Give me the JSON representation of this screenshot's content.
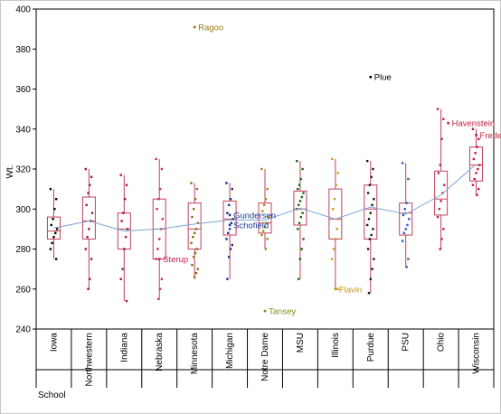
{
  "chart_data": {
    "type": "box-plot-with-points",
    "ylabel": "Wt.",
    "xlabel": "School",
    "ylim": [
      240,
      400
    ],
    "yticks": [
      240,
      260,
      280,
      300,
      320,
      340,
      360,
      380,
      400
    ],
    "grid": false,
    "colors": {
      "box": "#c0405a",
      "mean_line": "#7ea4d4",
      "axis": "#000000"
    },
    "categories": [
      "Iowa",
      "Northwestern",
      "Indiana",
      "Nebraska",
      "Minnesota",
      "Michigan",
      "Notre Dame",
      "MSU",
      "Illinois",
      "Purdue",
      "PSU",
      "Ohio",
      "Wisconsin"
    ],
    "boxes": [
      {
        "school": "Iowa",
        "min": 275,
        "q1": 285,
        "median": 289,
        "q3": 296,
        "max": 310
      },
      {
        "school": "Northwestern",
        "min": 260,
        "q1": 285,
        "median": 294,
        "q3": 306,
        "max": 320
      },
      {
        "school": "Indiana",
        "min": 254,
        "q1": 280,
        "median": 290,
        "q3": 298,
        "max": 317
      },
      {
        "school": "Nebraska",
        "min": 255,
        "q1": 275,
        "median": 290,
        "q3": 305,
        "max": 325
      },
      {
        "school": "Minnesota",
        "min": 265,
        "q1": 280,
        "median": 290,
        "q3": 303,
        "max": 313
      },
      {
        "school": "Michigan",
        "min": 265,
        "q1": 287,
        "median": 295,
        "q3": 304,
        "max": 313
      },
      {
        "school": "Notre Dame",
        "min": 280,
        "q1": 288,
        "median": 293,
        "q3": 303,
        "max": 320
      },
      {
        "school": "MSU",
        "min": 265,
        "q1": 292,
        "median": 300,
        "q3": 309,
        "max": 324
      },
      {
        "school": "Illinois",
        "min": 260,
        "q1": 285,
        "median": 295,
        "q3": 310,
        "max": 325
      },
      {
        "school": "Purdue",
        "min": 258,
        "q1": 285,
        "median": 300,
        "q3": 312,
        "max": 324
      },
      {
        "school": "PSU",
        "min": 271,
        "q1": 287,
        "median": 298,
        "q3": 303,
        "max": 323
      },
      {
        "school": "Ohio",
        "min": 280,
        "q1": 297,
        "median": 305,
        "q3": 319,
        "max": 350
      },
      {
        "school": "Wisconsin",
        "min": 307,
        "q1": 314,
        "median": 322,
        "q3": 331,
        "max": 340
      }
    ],
    "means": [
      290.5,
      294,
      289,
      290,
      292.5,
      294.5,
      294.5,
      300.5,
      295,
      301,
      297.5,
      307,
      322.5
    ],
    "points": [
      {
        "school": "Iowa",
        "color": "#000000",
        "values": [
          310,
          305,
          300,
          295,
          292,
          290,
          288,
          286,
          283,
          280,
          275
        ]
      },
      {
        "school": "Northwestern",
        "color": "#8b1a5a",
        "values": [
          320,
          316,
          312,
          308,
          302,
          298,
          294,
          290,
          286,
          280,
          275,
          265,
          260
        ]
      },
      {
        "school": "Indiana",
        "color": "#a01840",
        "values": [
          317,
          312,
          305,
          298,
          294,
          290,
          286,
          280,
          270,
          265,
          254
        ]
      },
      {
        "school": "Nebraska",
        "color": "#c03060",
        "values": [
          325,
          320,
          310,
          305,
          300,
          295,
          290,
          285,
          280,
          275,
          265,
          260,
          255
        ]
      },
      {
        "school": "Minnesota",
        "color": "#8b6a14",
        "values": [
          313,
          310,
          305,
          300,
          296,
          293,
          290,
          288,
          286,
          283,
          280,
          278,
          276,
          272,
          270,
          268,
          266
        ]
      },
      {
        "school": "Michigan",
        "color": "#1a2c8b",
        "values": [
          313,
          310,
          305,
          302,
          298,
          295,
          293,
          290,
          288,
          285,
          282,
          280,
          276,
          265
        ]
      },
      {
        "school": "Notre Dame",
        "color": "#9a8a14",
        "values": [
          320,
          310,
          305,
          302,
          299,
          296,
          293,
          291,
          289,
          287,
          285,
          280
        ]
      },
      {
        "school": "MSU",
        "color": "#1a6a14",
        "values": [
          324,
          320,
          315,
          312,
          310,
          308,
          306,
          304,
          302,
          300,
          298,
          296,
          293,
          290,
          285,
          280,
          275,
          265
        ]
      },
      {
        "school": "Illinois",
        "color": "#c89a14",
        "values": [
          325,
          318,
          312,
          305,
          300,
          295,
          290,
          285,
          280,
          275,
          260
        ]
      },
      {
        "school": "Purdue",
        "color": "#1a1a1a",
        "values": [
          324,
          320,
          316,
          312,
          308,
          305,
          302,
          298,
          295,
          292,
          290,
          287,
          285,
          280,
          275,
          270,
          265,
          258
        ]
      },
      {
        "school": "PSU",
        "color": "#2a5ac8",
        "values": [
          323,
          315,
          303,
          300,
          297,
          295,
          292,
          290,
          288,
          284,
          275,
          271
        ]
      },
      {
        "school": "Ohio",
        "color": "#c02050",
        "values": [
          350,
          345,
          335,
          322,
          318,
          312,
          308,
          304,
          300,
          296,
          290,
          285,
          280
        ]
      },
      {
        "school": "Wisconsin",
        "color": "#c8143c",
        "values": [
          340,
          335,
          331,
          328,
          325,
          322,
          320,
          318,
          315,
          312,
          310,
          307
        ]
      }
    ],
    "annotations": [
      {
        "text": "Ragoo",
        "school": "Minnesota",
        "value": 391,
        "color": "#9a7a10"
      },
      {
        "text": "Plue",
        "school": "Purdue",
        "value": 366,
        "color": "#000000"
      },
      {
        "text": "Havenstein",
        "school": "Ohio",
        "value": 343,
        "color": "#c02040",
        "offset": "right"
      },
      {
        "text": "Frederick",
        "school": "Wisconsin",
        "value": 337,
        "color": "#c02040"
      },
      {
        "text": "Gundersen",
        "school": "Michigan",
        "value": 297,
        "color": "#1a3c9b"
      },
      {
        "text": "Schofield",
        "school": "Michigan",
        "value": 292,
        "color": "#1a3c9b"
      },
      {
        "text": "Sterup",
        "school": "Nebraska",
        "value": 275,
        "color": "#c02050"
      },
      {
        "text": "Tansey",
        "school": "Notre Dame",
        "value": 249,
        "color": "#8b8a14"
      },
      {
        "text": "Flavin",
        "school": "Illinois",
        "value": 260,
        "color": "#c8961a"
      }
    ]
  }
}
